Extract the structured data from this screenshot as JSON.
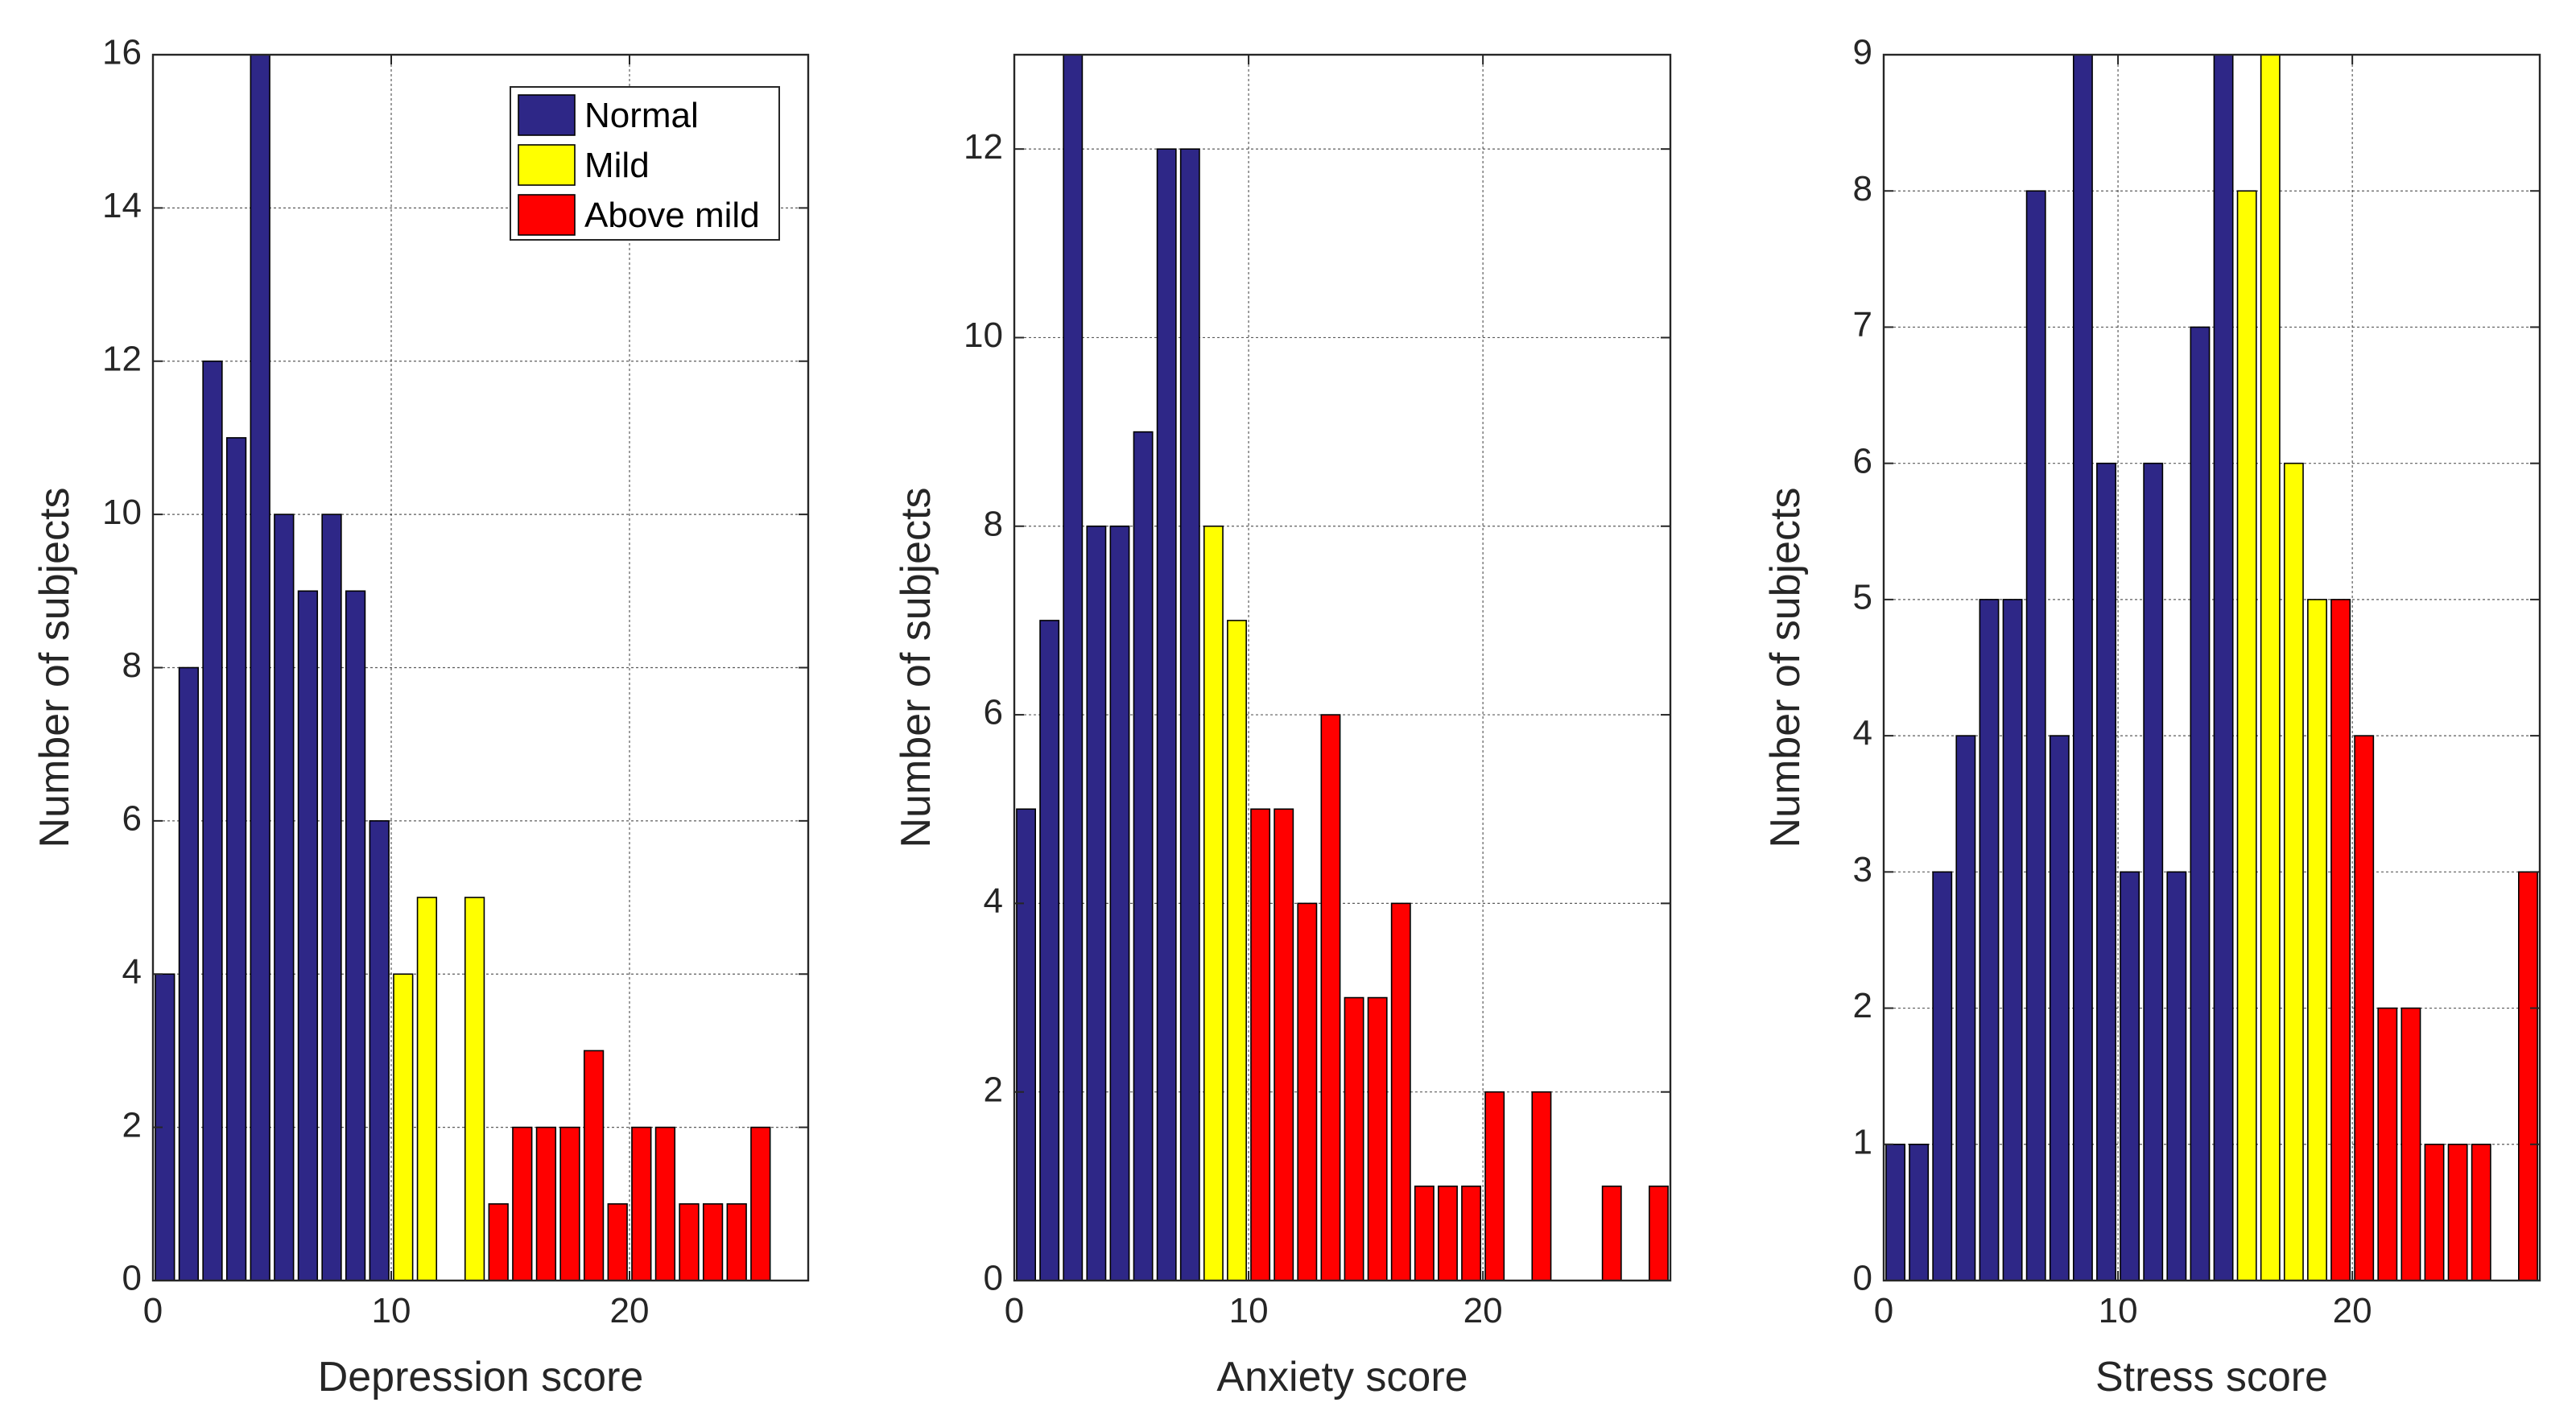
{
  "chart_data": [
    {
      "type": "bar",
      "xlabel": "Depression score",
      "ylabel": "Number of subjects",
      "xlim": [
        0,
        27.5
      ],
      "ylim": [
        0,
        16
      ],
      "xticks": [
        "0",
        "10",
        "20"
      ],
      "yticks": [
        "0",
        "2",
        "4",
        "6",
        "8",
        "10",
        "12",
        "14",
        "16"
      ],
      "grid": true,
      "legend": {
        "position": "top-right",
        "entries": [
          {
            "label": "Normal",
            "color": "#2E2787"
          },
          {
            "label": "Mild",
            "color": "#FFFF00"
          },
          {
            "label": "Above mild",
            "color": "#FF0000"
          }
        ]
      },
      "x": [
        0,
        1,
        2,
        3,
        4,
        5,
        6,
        7,
        8,
        9,
        10,
        11,
        12,
        13,
        14,
        15,
        16,
        17,
        18,
        19,
        20,
        21,
        22,
        23,
        24,
        25
      ],
      "values": [
        4,
        8,
        12,
        11,
        16,
        10,
        9,
        10,
        9,
        6,
        4,
        5,
        0,
        5,
        1,
        2,
        2,
        2,
        3,
        1,
        2,
        2,
        1,
        1,
        1,
        2
      ],
      "categories": [
        "Normal",
        "Normal",
        "Normal",
        "Normal",
        "Normal",
        "Normal",
        "Normal",
        "Normal",
        "Normal",
        "Normal",
        "Mild",
        "Mild",
        "Mild",
        "Mild",
        "Above mild",
        "Above mild",
        "Above mild",
        "Above mild",
        "Above mild",
        "Above mild",
        "Above mild",
        "Above mild",
        "Above mild",
        "Above mild",
        "Above mild",
        "Above mild"
      ]
    },
    {
      "type": "bar",
      "xlabel": "Anxiety score",
      "ylabel": "Number of subjects",
      "xlim": [
        0,
        28
      ],
      "ylim": [
        0,
        13
      ],
      "xticks": [
        "0",
        "10",
        "20"
      ],
      "yticks": [
        "0",
        "2",
        "4",
        "6",
        "8",
        "10",
        "12"
      ],
      "grid": true,
      "x": [
        0,
        1,
        2,
        3,
        4,
        5,
        6,
        7,
        8,
        9,
        10,
        11,
        12,
        13,
        14,
        15,
        16,
        17,
        18,
        19,
        20,
        21,
        22,
        23,
        24,
        25,
        26,
        27
      ],
      "values": [
        5,
        7,
        13,
        8,
        8,
        9,
        12,
        12,
        8,
        7,
        5,
        5,
        4,
        6,
        3,
        3,
        4,
        1,
        1,
        1,
        2,
        0,
        2,
        0,
        0,
        1,
        0,
        1
      ],
      "categories": [
        "Normal",
        "Normal",
        "Normal",
        "Normal",
        "Normal",
        "Normal",
        "Normal",
        "Normal",
        "Mild",
        "Mild",
        "Above mild",
        "Above mild",
        "Above mild",
        "Above mild",
        "Above mild",
        "Above mild",
        "Above mild",
        "Above mild",
        "Above mild",
        "Above mild",
        "Above mild",
        "Above mild",
        "Above mild",
        "Above mild",
        "Above mild",
        "Above mild",
        "Above mild",
        "Above mild"
      ]
    },
    {
      "type": "bar",
      "xlabel": "Stress score",
      "ylabel": "Number of subjects",
      "xlim": [
        0,
        28
      ],
      "ylim": [
        0,
        9
      ],
      "xticks": [
        "0",
        "10",
        "20"
      ],
      "yticks": [
        "0",
        "1",
        "2",
        "3",
        "4",
        "5",
        "6",
        "7",
        "8",
        "9"
      ],
      "grid": true,
      "x": [
        0,
        1,
        2,
        3,
        4,
        5,
        6,
        7,
        8,
        9,
        10,
        11,
        12,
        13,
        14,
        15,
        16,
        17,
        18,
        19,
        20,
        21,
        22,
        23,
        24,
        25,
        26,
        27
      ],
      "values": [
        1,
        1,
        3,
        4,
        5,
        5,
        8,
        4,
        9,
        6,
        3,
        6,
        3,
        7,
        9,
        8,
        9,
        6,
        5,
        5,
        4,
        2,
        2,
        1,
        1,
        1,
        0,
        3
      ],
      "categories": [
        "Normal",
        "Normal",
        "Normal",
        "Normal",
        "Normal",
        "Normal",
        "Normal",
        "Normal",
        "Normal",
        "Normal",
        "Normal",
        "Normal",
        "Normal",
        "Normal",
        "Normal",
        "Mild",
        "Mild",
        "Mild",
        "Mild",
        "Above mild",
        "Above mild",
        "Above mild",
        "Above mild",
        "Above mild",
        "Above mild",
        "Above mild",
        "Above mild",
        "Above mild"
      ]
    }
  ]
}
